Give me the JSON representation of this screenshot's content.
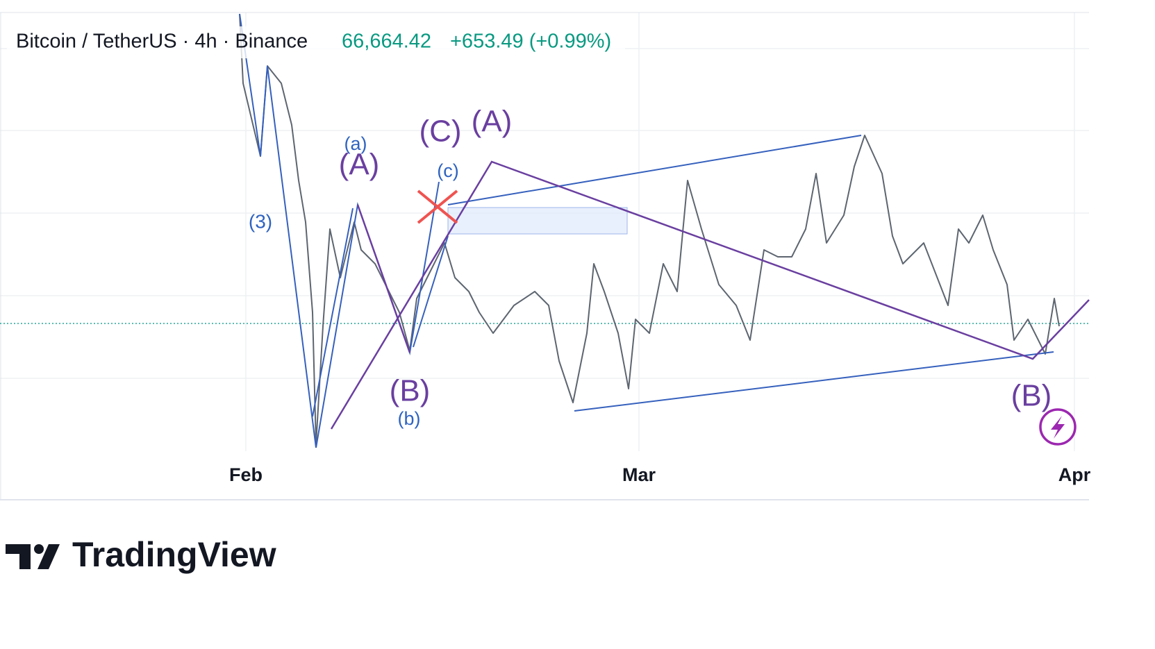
{
  "header": {
    "symbol": "Bitcoin / TetherUS · 4h · Binance",
    "price": "66,664.42",
    "change": "+653.49 (+0.99%)"
  },
  "waves": [
    "(3)",
    "(a)",
    "(A)",
    "(b)",
    "(B)",
    "(c)",
    "(C)",
    "(A)",
    "(B)"
  ],
  "time_axis": [
    "Feb",
    "Mar",
    "Apr"
  ],
  "footer": {
    "logo": "TradingView"
  }
}
